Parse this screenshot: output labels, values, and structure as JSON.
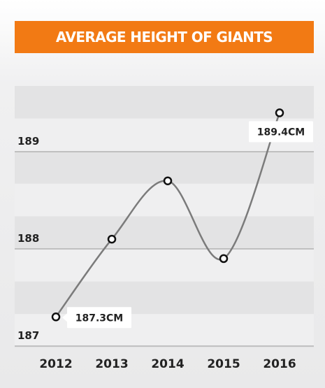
{
  "chart_data": {
    "type": "line",
    "title": "AVERAGE HEIGHT OF GIANTS",
    "categories": [
      "2012",
      "2013",
      "2014",
      "2015",
      "2016"
    ],
    "values": [
      187.3,
      188.1,
      188.7,
      187.9,
      189.4
    ],
    "ylim": [
      187,
      189.6
    ],
    "yticks": [
      "187",
      "188",
      "189"
    ],
    "annotations": [
      {
        "category": "2012",
        "text": "187.3CM"
      },
      {
        "category": "2016",
        "text": "189.4CM"
      }
    ],
    "grid": true,
    "colors": {
      "title_bg": "#f27a14",
      "line": "#7b7b7b",
      "band_dark": "#e3e3e4",
      "band_light": "#efeff0",
      "gridline": "#a8a8a8"
    }
  }
}
